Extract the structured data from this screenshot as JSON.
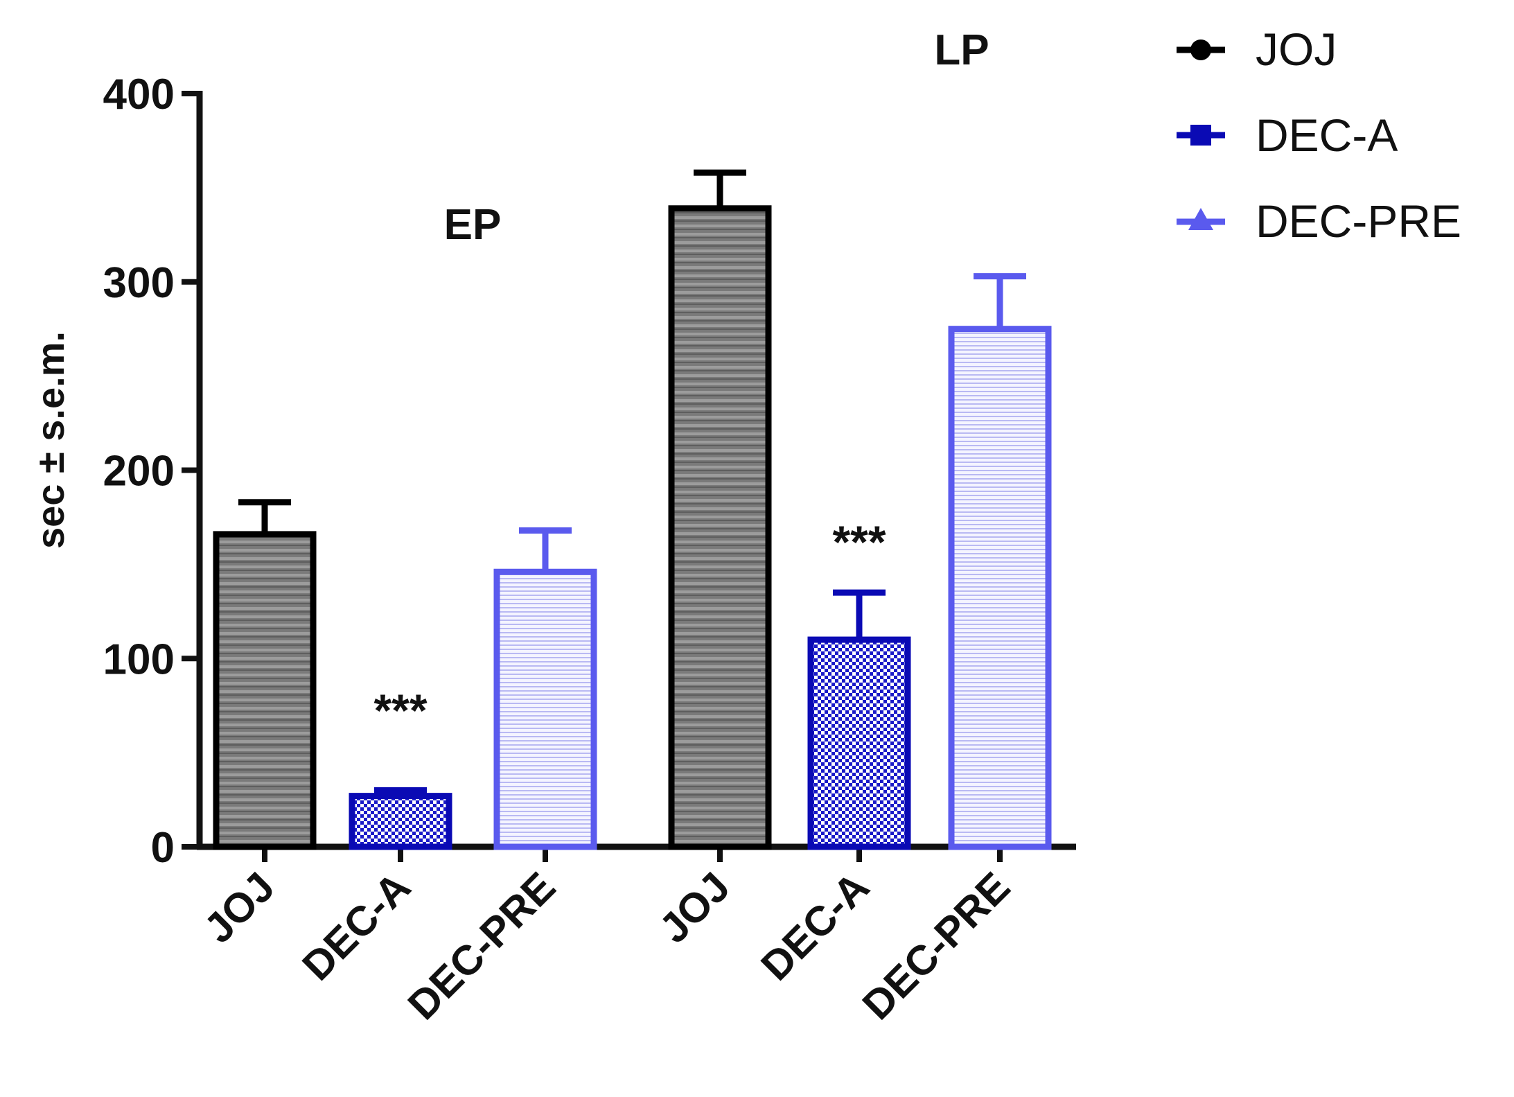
{
  "chart_data": {
    "type": "bar",
    "ylabel": "sec ± s.e.m.",
    "xlabel": "",
    "ylim": [
      0,
      400
    ],
    "yticks": [
      0,
      100,
      200,
      300,
      400
    ],
    "groups": [
      {
        "name": "EP",
        "bars": [
          {
            "category": "JOJ",
            "value": 166,
            "sem": 17,
            "annotation": ""
          },
          {
            "category": "DEC-A",
            "value": 27,
            "sem": 3,
            "annotation": ""
          },
          {
            "category": "DEC-PRE",
            "value": 146,
            "sem": 22,
            "annotation": ""
          }
        ]
      },
      {
        "name": "LP",
        "bars": [
          {
            "category": "JOJ",
            "value": 339,
            "sem": 19,
            "annotation": ""
          },
          {
            "category": "DEC-A",
            "value": 110,
            "sem": 25,
            "annotation": "***"
          },
          {
            "category": "DEC-PRE",
            "value": 275,
            "sem": 28,
            "annotation": ""
          }
        ]
      }
    ],
    "floating_annotations": [
      {
        "text": "***",
        "near_group": "EP",
        "near_bar": "DEC-A"
      }
    ],
    "legend": {
      "placement": "top-right",
      "entries": [
        {
          "label": "JOJ",
          "marker": "circle",
          "color": "#000000"
        },
        {
          "label": "DEC-A",
          "marker": "square",
          "color": "#0a0ab4"
        },
        {
          "label": "DEC-PRE",
          "marker": "triangle",
          "color": "#5a5aee"
        }
      ]
    },
    "series_styles": {
      "JOJ": {
        "stroke": "#000000",
        "pattern": "gray-stripes"
      },
      "DEC-A": {
        "stroke": "#0a0ab4",
        "pattern": "blue-checker"
      },
      "DEC-PRE": {
        "stroke": "#5a5aee",
        "pattern": "light-blue-stripes"
      }
    }
  }
}
